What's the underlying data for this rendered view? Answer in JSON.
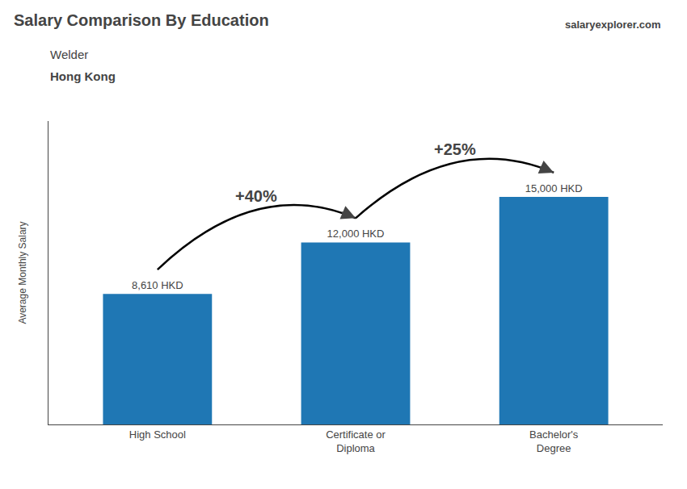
{
  "chart_data": {
    "type": "bar",
    "title": "Salary Comparison By Education",
    "subtitle": [
      "Welder",
      "Hong Kong"
    ],
    "source": "salaryexplorer.com",
    "ylabel": "Average Monthly Salary",
    "categories": [
      "High School",
      "Certificate or\nDiploma",
      "Bachelor's\nDegree"
    ],
    "values": [
      8610,
      12000,
      15000
    ],
    "value_labels": [
      "8,610 HKD",
      "12,000 HKD",
      "15,000 HKD"
    ],
    "data_labels": true,
    "annotations": [
      "+40%",
      "+25%"
    ],
    "ylim": [
      0,
      20000
    ],
    "yticks": [],
    "grid": false,
    "tick_labels": "x"
  }
}
